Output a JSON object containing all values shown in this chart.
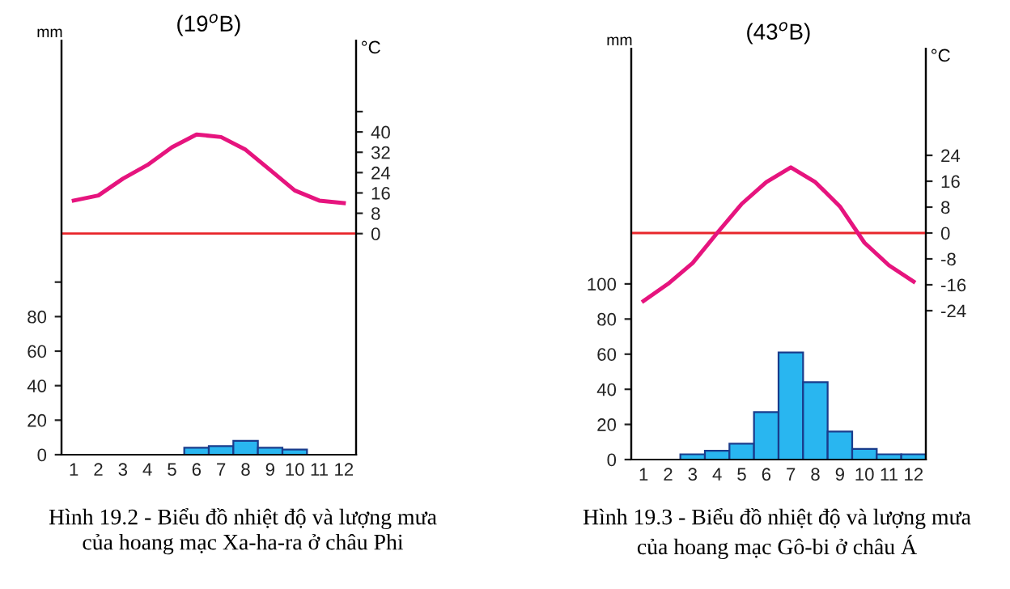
{
  "chart_data": [
    {
      "type": "bar",
      "title": "(19$^{o}$B)",
      "ylabel": "mm",
      "y2label": "°C",
      "categories": [
        "1",
        "2",
        "3",
        "4",
        "5",
        "6",
        "7",
        "8",
        "9",
        "10",
        "11",
        "12"
      ],
      "series": [
        {
          "color": "#29b6f0",
          "values": [
            0,
            0,
            0,
            0,
            0,
            4,
            5,
            8,
            4,
            3,
            0,
            0
          ]
        },
        {
          "type": "line",
          "axis": "y2",
          "color": "#e6147e",
          "values": [
            13,
            15,
            21.6,
            27,
            34,
            39,
            38,
            33,
            25,
            17,
            13,
            12
          ]
        }
      ],
      "ylim": [
        0,
        240
      ],
      "yticks": [
        0,
        20,
        40,
        60,
        80,
        {
          "value": 100,
          "label": null
        }
      ],
      "y2lim": [
        -87,
        76
      ],
      "y2ticks": [
        0,
        8,
        16,
        24,
        32,
        40,
        {
          "value": 48,
          "label": null
        }
      ],
      "ref_lines": [
        {
          "axis": "y2",
          "value": 0,
          "color": "#e8262b"
        }
      ],
      "grid": false,
      "legend": false,
      "annotations": [
        "Hình 19.2 - Biểu đồ nhiệt độ và lượng mưa\ncủa hoang mạc Xa-ha-ra ở châu Phi"
      ]
    },
    {
      "type": "bar",
      "title": "(43$^{o}$B)",
      "ylabel": "mm",
      "y2label": "°C",
      "categories": [
        "1",
        "2",
        "3",
        "4",
        "5",
        "6",
        "7",
        "8",
        "9",
        "10",
        "11",
        "12"
      ],
      "series": [
        {
          "color": "#29b6f0",
          "values": [
            0,
            0,
            3,
            5,
            9,
            27,
            61,
            44,
            16,
            6,
            3,
            3
          ]
        },
        {
          "type": "line",
          "axis": "y2",
          "color": "#e6147e",
          "values": [
            -21,
            -15.7,
            -9.3,
            0,
            9,
            15.7,
            20.3,
            15.7,
            8.2,
            -3,
            -10,
            -15
          ]
        }
      ],
      "ylim": [
        0,
        234
      ],
      "yticks": [
        0,
        20,
        40,
        60,
        80,
        100
      ],
      "y2lim": [
        -70,
        57
      ],
      "y2ticks": [
        -24,
        -16,
        -8,
        0,
        8,
        16,
        24
      ],
      "ref_lines": [
        {
          "axis": "y2",
          "value": 0,
          "color": "#e8262b"
        }
      ],
      "grid": false,
      "legend": false,
      "annotations": [
        "Hình 19.3 - Biểu đồ nhiệt độ và lượng mưa\ncủa hoang mạc Gô-bi ở châu Á"
      ]
    }
  ]
}
